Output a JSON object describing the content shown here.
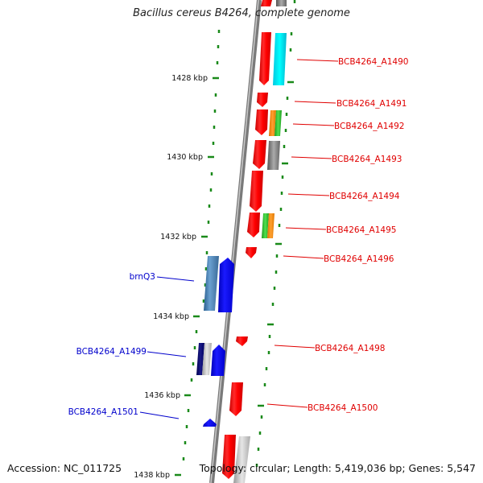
{
  "title": "Bacillus cereus B4264, complete genome",
  "footer": {
    "accession": "Accession: NC_011725",
    "summary": "Topology: circular; Length: 5,419,036 bp; Genes: 5,547"
  },
  "colors": {
    "forward_gene": "#0000ee",
    "reverse_gene": "#ff0000",
    "tick": "#1a8a1a",
    "axis": "#888888"
  },
  "ruler": [
    {
      "id": "kbp-1428",
      "label": "1428 kbp"
    },
    {
      "id": "kbp-1430",
      "label": "1430 kbp"
    },
    {
      "id": "kbp-1432",
      "label": "1432 kbp"
    },
    {
      "id": "kbp-1434",
      "label": "1434 kbp"
    },
    {
      "id": "kbp-1436",
      "label": "1436 kbp"
    },
    {
      "id": "kbp-1438",
      "label": "1438 kbp"
    }
  ],
  "genes": [
    {
      "id": "a1490",
      "label": "BCB4264_A1490",
      "strand": "reverse"
    },
    {
      "id": "a1491",
      "label": "BCB4264_A1491",
      "strand": "reverse"
    },
    {
      "id": "a1492",
      "label": "BCB4264_A1492",
      "strand": "reverse"
    },
    {
      "id": "a1493",
      "label": "BCB4264_A1493",
      "strand": "reverse"
    },
    {
      "id": "a1494",
      "label": "BCB4264_A1494",
      "strand": "reverse"
    },
    {
      "id": "a1495",
      "label": "BCB4264_A1495",
      "strand": "reverse"
    },
    {
      "id": "a1496",
      "label": "BCB4264_A1496",
      "strand": "reverse"
    },
    {
      "id": "brnq3",
      "label": "brnQ3",
      "strand": "forward"
    },
    {
      "id": "a1498",
      "label": "BCB4264_A1498",
      "strand": "reverse"
    },
    {
      "id": "a1499",
      "label": "BCB4264_A1499",
      "strand": "forward"
    },
    {
      "id": "a1500",
      "label": "BCB4264_A1500",
      "strand": "reverse"
    },
    {
      "id": "a1501",
      "label": "BCB4264_A1501",
      "strand": "forward"
    }
  ]
}
